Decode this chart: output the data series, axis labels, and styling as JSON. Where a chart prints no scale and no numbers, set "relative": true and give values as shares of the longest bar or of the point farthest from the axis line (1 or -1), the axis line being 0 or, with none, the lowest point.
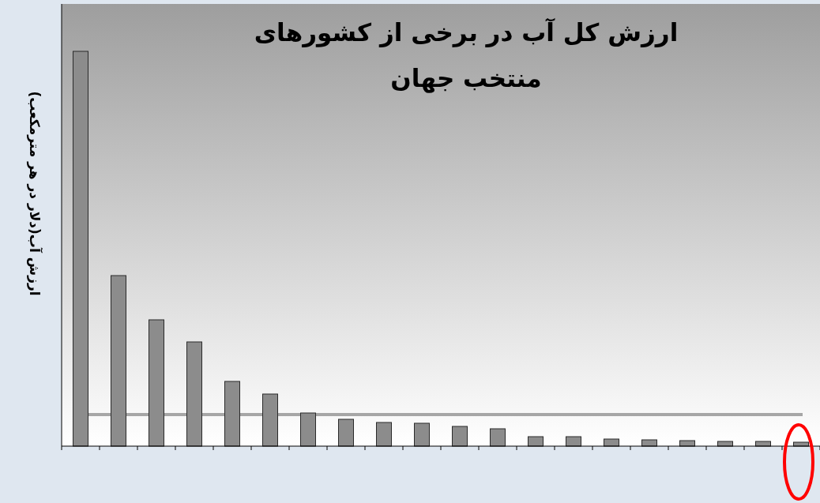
{
  "chart_data": {
    "type": "bar",
    "title": "ارزش کل آب در برخی از کشورهای منتخب جهان",
    "ylabel": "ارزش آب(دلار در هر مترمکعب)",
    "relative": true,
    "categories": [
      null,
      null,
      null,
      null,
      null,
      null,
      null,
      null,
      null,
      null,
      null,
      null,
      null,
      null,
      null,
      null,
      null,
      null,
      null,
      null
    ],
    "values": [
      1,
      0.432,
      0.32,
      0.264,
      0.164,
      0.132,
      0.084,
      0.068,
      0.06,
      0.058,
      0.05,
      0.044,
      0.024,
      0.024,
      0.018,
      0.016,
      0.014,
      0.012,
      0.012,
      0.01
    ],
    "color": "#8c8c8c",
    "ref_lines": [
      {
        "axis": "y",
        "value": 0.08,
        "color": "#a6a6a6"
      }
    ]
  }
}
